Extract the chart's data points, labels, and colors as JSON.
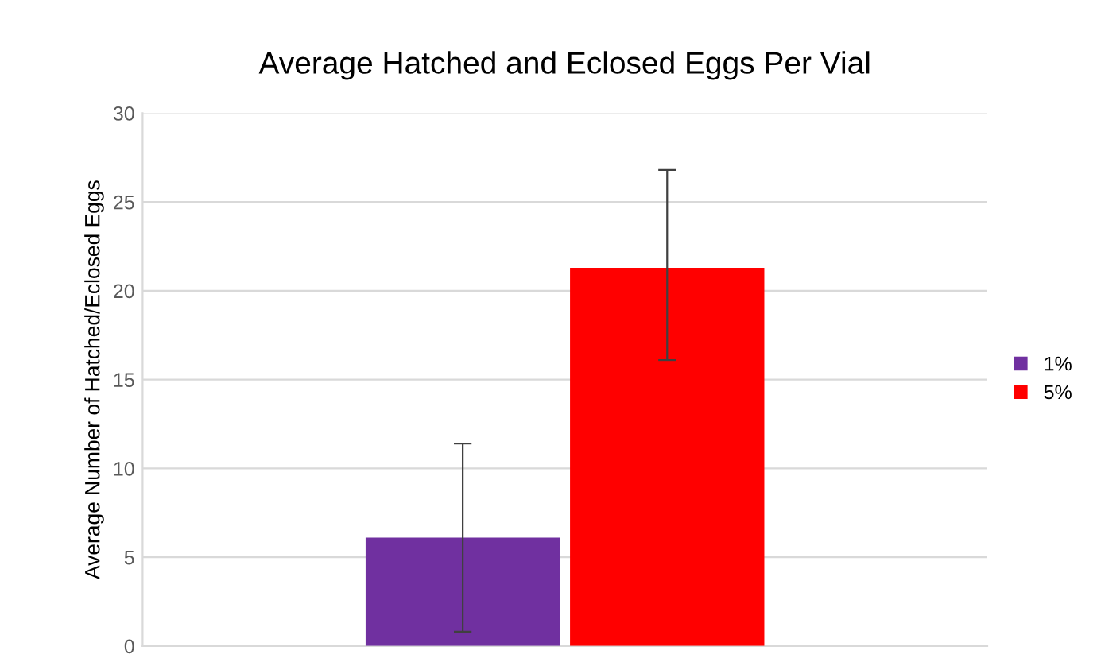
{
  "chart_data": {
    "type": "bar",
    "title": "Average Hatched and Eclosed Eggs Per Vial",
    "ylabel": "Average Number of Hatched/Eclosed Eggs",
    "categories": [
      null
    ],
    "series": [
      {
        "name": "1%",
        "color": "#7030a0",
        "values": [
          6.1
        ],
        "errors": [
          [
            0.8,
            11.4
          ]
        ]
      },
      {
        "name": "5%",
        "color": "#ff0000",
        "values": [
          21.3
        ],
        "errors": [
          [
            16.1,
            26.8
          ]
        ]
      }
    ],
    "ylim": [
      0,
      30
    ],
    "yticks": [
      0,
      5,
      10,
      15,
      20,
      25,
      30
    ],
    "grid": "y",
    "legend": "right"
  }
}
